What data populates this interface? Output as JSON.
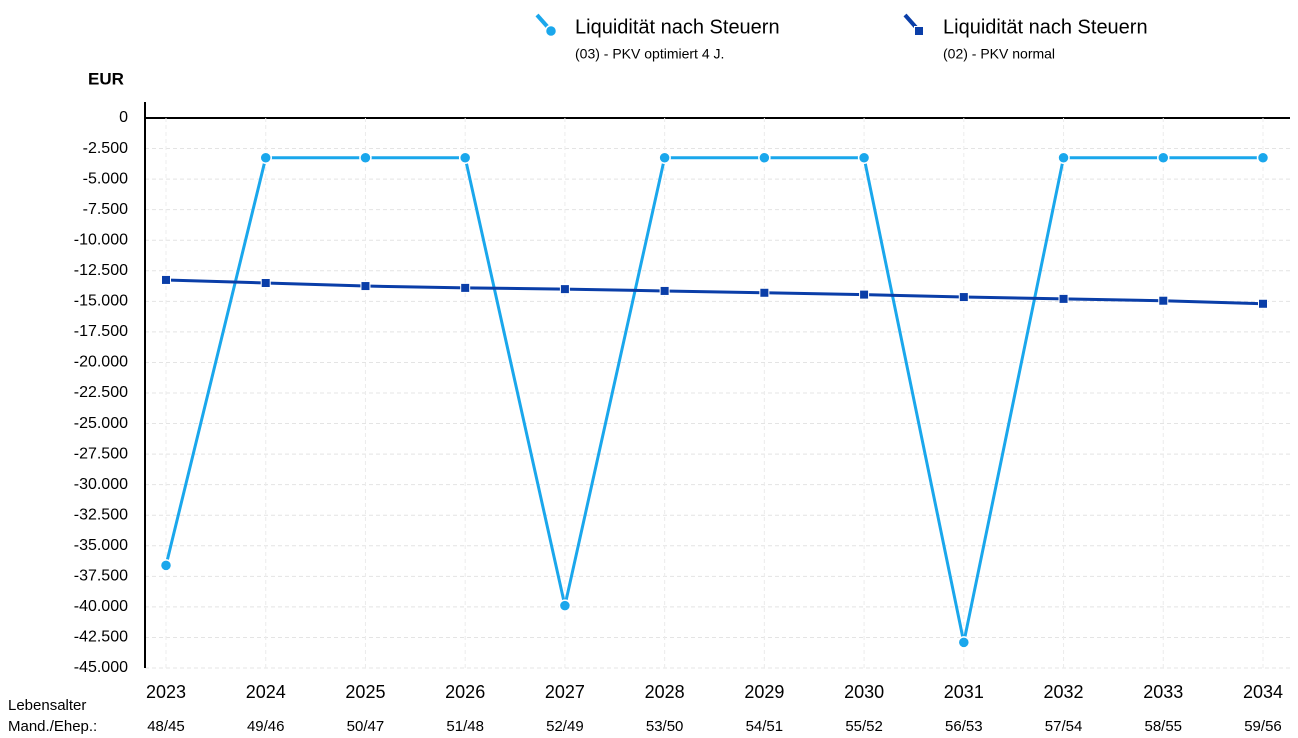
{
  "chart_data": {
    "type": "line",
    "y_label": "EUR",
    "categories": [
      "2023",
      "2024",
      "2025",
      "2026",
      "2027",
      "2028",
      "2029",
      "2030",
      "2031",
      "2032",
      "2033",
      "2034"
    ],
    "age_row_label": [
      "Lebensalter",
      "Mand./Ehep.:"
    ],
    "ages": [
      "48/45",
      "49/46",
      "50/47",
      "51/48",
      "52/49",
      "53/50",
      "54/51",
      "55/52",
      "56/53",
      "57/54",
      "58/55",
      "59/56"
    ],
    "series": [
      {
        "name": "Liquidität nach Steuern",
        "detail": "(03) - PKV optimiert 4 J.",
        "color": "#1aa7ec",
        "marker": "circle",
        "values": [
          -36600,
          -3250,
          -3250,
          -3250,
          -39900,
          -3250,
          -3250,
          -3250,
          -42900,
          -3250,
          -3250,
          -3250
        ]
      },
      {
        "name": "Liquidität nach Steuern",
        "detail": "(02) - PKV normal",
        "color": "#0a3ea8",
        "marker": "square",
        "values": [
          -13250,
          -13500,
          -13750,
          -13900,
          -14000,
          -14150,
          -14300,
          -14450,
          -14650,
          -14800,
          -14950,
          -15200
        ]
      }
    ],
    "ylim": [
      -45000,
      0
    ],
    "yticks": [
      0,
      {
        "value": -2500,
        "label": "-2.500"
      },
      {
        "value": -5000,
        "label": "-5.000"
      },
      {
        "value": -7500,
        "label": "-7.500"
      },
      {
        "value": -10000,
        "label": "-10.000"
      },
      {
        "value": -12500,
        "label": "-12.500"
      },
      {
        "value": -15000,
        "label": "-15.000"
      },
      {
        "value": -17500,
        "label": "-17.500"
      },
      {
        "value": -20000,
        "label": "-20.000"
      },
      {
        "value": -22500,
        "label": "-22.500"
      },
      {
        "value": -25000,
        "label": "-25.000"
      },
      {
        "value": -27500,
        "label": "-27.500"
      },
      {
        "value": -30000,
        "label": "-30.000"
      },
      {
        "value": -32500,
        "label": "-32.500"
      },
      {
        "value": -35000,
        "label": "-35.000"
      },
      {
        "value": -37500,
        "label": "-37.500"
      },
      {
        "value": -40000,
        "label": "-40.000"
      },
      {
        "value": -42500,
        "label": "-42.500"
      },
      {
        "value": -45000,
        "label": "-45.000"
      }
    ],
    "grid": true
  }
}
